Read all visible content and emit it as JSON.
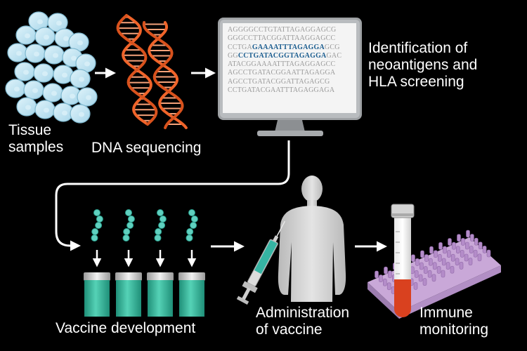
{
  "labels": {
    "tissue_samples": [
      "Tissue",
      "samples"
    ],
    "dna_sequencing": "DNA sequencing",
    "identification": [
      "Identification of",
      "neoantigens and",
      "HLA screening"
    ],
    "vaccine_development": "Vaccine development",
    "administration": [
      "Administration",
      "of vaccine"
    ],
    "immune_monitoring": [
      "Immune",
      "monitoring"
    ]
  },
  "sequences": [
    {
      "pre": "AGGGGCCTGTATTAGAGGAGCG",
      "hl": "",
      "post": ""
    },
    {
      "pre": "GGGCCTTACGGATTAAGGAGCC",
      "hl": "",
      "post": ""
    },
    {
      "pre": "CCTGA",
      "hl": "GAAAATTTAGAGGA",
      "post": "GCG"
    },
    {
      "pre": "GG",
      "hl": "CCTGATACGGTAGAGGA",
      "post": "GAC"
    },
    {
      "pre": "ATACGGAAAATTTAGAGGAGCC",
      "hl": "",
      "post": ""
    },
    {
      "pre": "AGCCTGATACGGAATTAGAGGA",
      "hl": "",
      "post": ""
    },
    {
      "pre": "AGCCTGATACGGATTAGAGCG",
      "hl": "",
      "post": ""
    },
    {
      "pre": "CCTGATACGAATTTAGAGGAGA",
      "hl": "",
      "post": ""
    }
  ],
  "colors": {
    "background": "#000000",
    "cells": "#bfe4f2",
    "dna": "#f0642a",
    "vials": "#2fb59a",
    "tube_fill": "#d9411f",
    "plate": "#c9a8d8",
    "arrow": "#ffffff",
    "human": "#d6d6d6"
  }
}
